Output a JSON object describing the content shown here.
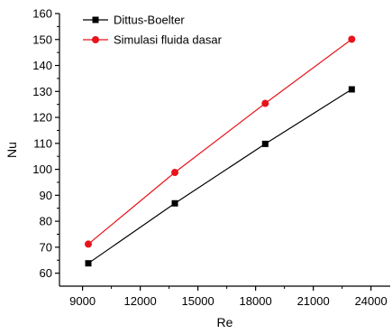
{
  "chart_data": {
    "type": "line",
    "xlabel": "Re",
    "ylabel": "Nu",
    "xlim": [
      7800,
      25000
    ],
    "ylim": [
      55,
      160
    ],
    "xticks": [
      9000,
      12000,
      15000,
      18000,
      21000,
      24000
    ],
    "yticks": [
      60,
      70,
      80,
      90,
      100,
      110,
      120,
      130,
      140,
      150,
      160
    ],
    "legend_position": "top-left",
    "grid": false,
    "series": [
      {
        "name": "Dittus-Boelter",
        "color": "#000000",
        "marker": "square",
        "x": [
          9300,
          13800,
          18500,
          23000
        ],
        "y": [
          63.8,
          86.9,
          109.8,
          130.8
        ]
      },
      {
        "name": "Simulasi fluida dasar",
        "color": "#e8141c",
        "marker": "circle",
        "x": [
          9300,
          13800,
          18500,
          23000
        ],
        "y": [
          71.2,
          98.8,
          125.4,
          150.1
        ]
      }
    ]
  }
}
